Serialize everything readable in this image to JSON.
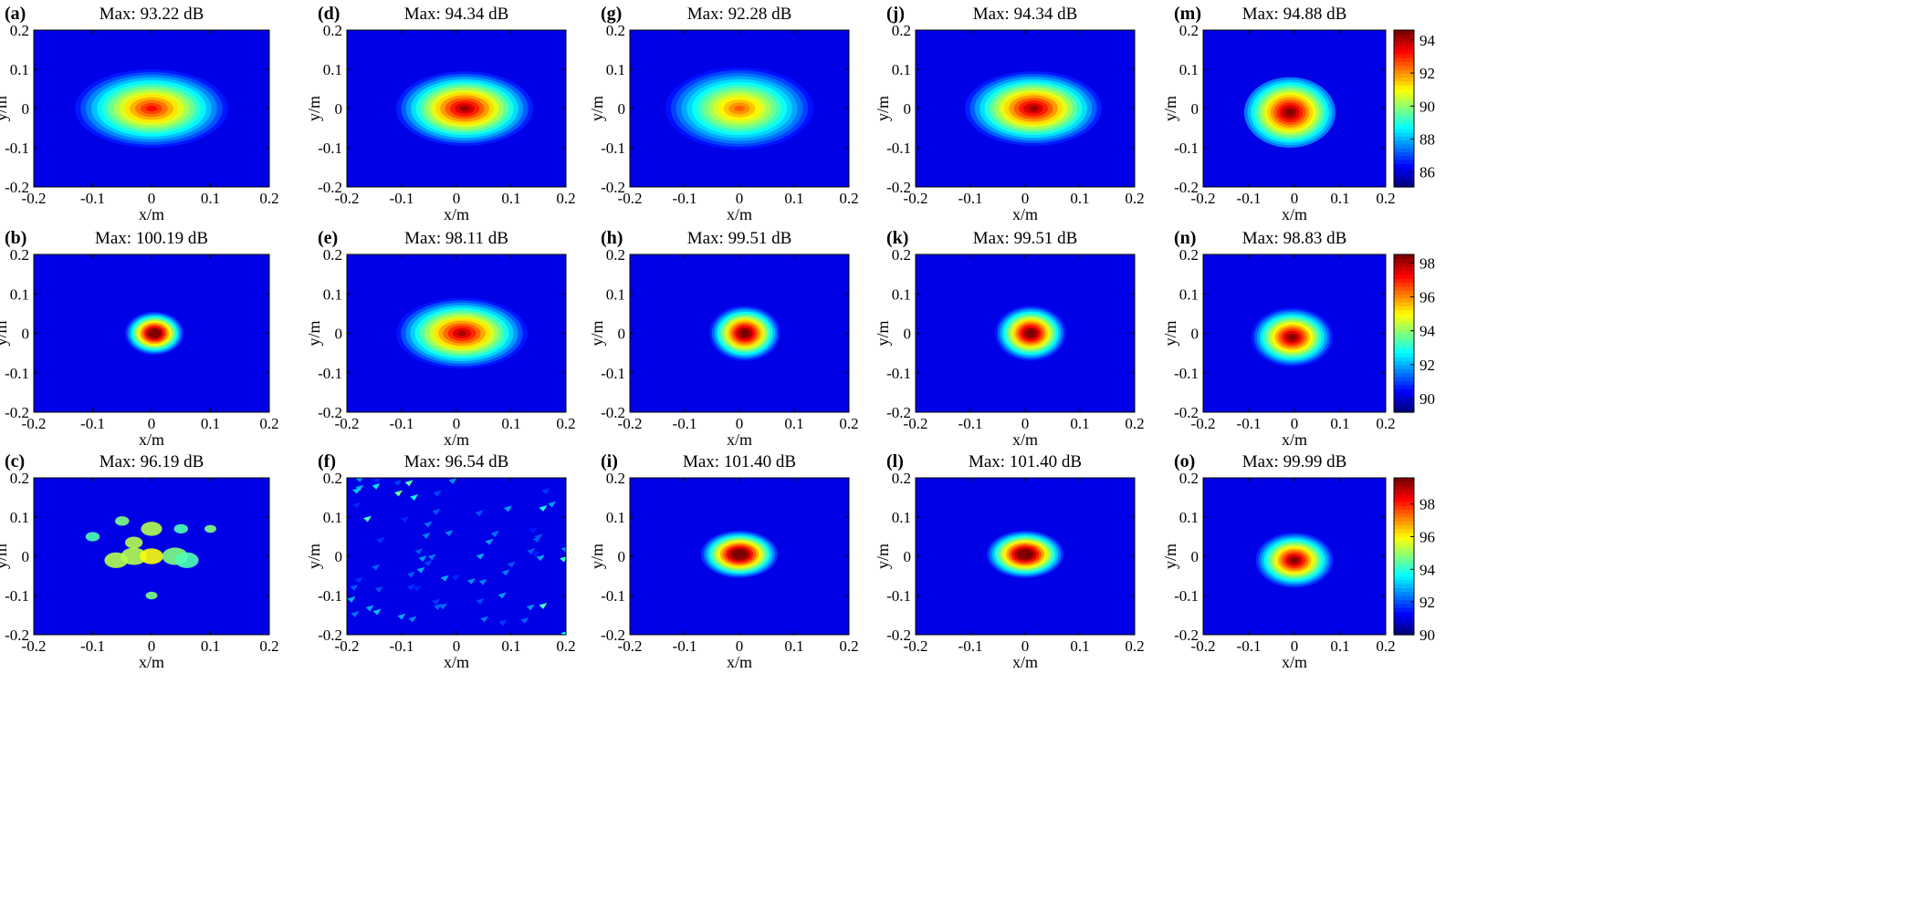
{
  "chart_data": {
    "type": "heatmap",
    "layout": {
      "rows": 3,
      "cols": 5
    },
    "x_ticks": [
      -0.2,
      -0.1,
      0,
      0.1,
      0.2
    ],
    "y_ticks": [
      -0.2,
      -0.1,
      0,
      0.1,
      0.2
    ],
    "xlabel": "x/m",
    "ylabel": "y/m",
    "xlim": [
      -0.2,
      0.2
    ],
    "ylim": [
      -0.2,
      0.2
    ],
    "colormap": "jet",
    "colorbars": [
      {
        "row": 0,
        "range": [
          85.1,
          94.6
        ],
        "ticks": [
          86,
          88,
          90,
          92,
          94
        ]
      },
      {
        "row": 1,
        "range": [
          89.2,
          98.5
        ],
        "ticks": [
          90,
          92,
          94,
          96,
          98
        ]
      },
      {
        "row": 2,
        "range": [
          90.0,
          99.6
        ],
        "ticks": [
          90,
          92,
          94,
          96,
          98
        ]
      }
    ],
    "panels": [
      {
        "label": "(a)",
        "title": "Max: 93.22 dB",
        "row": 0,
        "col": 0,
        "max_db": 93.22,
        "pattern": "blob",
        "cx": 0.0,
        "cy": 0.0,
        "rx": 0.13,
        "ry": 0.1,
        "peak": 93.22,
        "floor": 85.0
      },
      {
        "label": "(d)",
        "title": "Max: 94.34 dB",
        "row": 0,
        "col": 1,
        "max_db": 94.34,
        "pattern": "blob",
        "cx": 0.015,
        "cy": 0.0,
        "rx": 0.125,
        "ry": 0.095,
        "peak": 94.34,
        "floor": 85.0
      },
      {
        "label": "(g)",
        "title": "Max: 92.28 dB",
        "row": 0,
        "col": 2,
        "max_db": 92.28,
        "pattern": "blob",
        "cx": 0.0,
        "cy": 0.0,
        "rx": 0.135,
        "ry": 0.105,
        "peak": 92.28,
        "floor": 85.0
      },
      {
        "label": "(j)",
        "title": "Max: 94.34 dB",
        "row": 0,
        "col": 3,
        "max_db": 94.34,
        "pattern": "blob",
        "cx": 0.015,
        "cy": 0.0,
        "rx": 0.125,
        "ry": 0.095,
        "peak": 94.34,
        "floor": 85.0
      },
      {
        "label": "(m)",
        "title": "Max: 94.88 dB",
        "row": 0,
        "col": 4,
        "max_db": 94.88,
        "pattern": "blob",
        "cx": -0.01,
        "cy": -0.01,
        "rx": 0.1,
        "ry": 0.09,
        "peak": 94.88,
        "floor": 86.0
      },
      {
        "label": "(b)",
        "title": "Max: 100.19 dB",
        "row": 1,
        "col": 0,
        "max_db": 100.19,
        "pattern": "blob",
        "cx": 0.005,
        "cy": 0.0,
        "rx": 0.05,
        "ry": 0.055,
        "peak": 100.19,
        "floor": 89.0
      },
      {
        "label": "(e)",
        "title": "Max: 98.11 dB",
        "row": 1,
        "col": 1,
        "max_db": 98.11,
        "pattern": "blob",
        "cx": 0.01,
        "cy": 0.0,
        "rx": 0.12,
        "ry": 0.09,
        "peak": 98.11,
        "floor": 89.0
      },
      {
        "label": "(h)",
        "title": "Max: 99.51 dB",
        "row": 1,
        "col": 2,
        "max_db": 99.51,
        "pattern": "blob",
        "cx": 0.01,
        "cy": 0.0,
        "rx": 0.065,
        "ry": 0.07,
        "peak": 99.51,
        "floor": 89.0
      },
      {
        "label": "(k)",
        "title": "Max: 99.51 dB",
        "row": 1,
        "col": 3,
        "max_db": 99.51,
        "pattern": "blob",
        "cx": 0.01,
        "cy": 0.0,
        "rx": 0.065,
        "ry": 0.07,
        "peak": 99.51,
        "floor": 89.0
      },
      {
        "label": "(n)",
        "title": "Max: 98.83 dB",
        "row": 1,
        "col": 4,
        "max_db": 98.83,
        "pattern": "blob",
        "cx": -0.005,
        "cy": -0.01,
        "rx": 0.09,
        "ry": 0.075,
        "peak": 98.83,
        "floor": 89.0
      },
      {
        "label": "(c)",
        "title": "Max: 96.19 dB",
        "row": 2,
        "col": 0,
        "max_db": 96.19,
        "pattern": "speckle",
        "peak": 96.19,
        "floor": 90.0
      },
      {
        "label": "(f)",
        "title": "Max: 96.54 dB",
        "row": 2,
        "col": 1,
        "max_db": 96.54,
        "pattern": "scatter",
        "peak": 96.54,
        "floor": 90.0
      },
      {
        "label": "(i)",
        "title": "Max: 101.40 dB",
        "row": 2,
        "col": 2,
        "max_db": 101.4,
        "pattern": "blob",
        "cx": 0.0,
        "cy": 0.005,
        "rx": 0.07,
        "ry": 0.06,
        "peak": 101.4,
        "floor": 90.0
      },
      {
        "label": "(l)",
        "title": "Max: 101.40 dB",
        "row": 2,
        "col": 3,
        "max_db": 101.4,
        "pattern": "blob",
        "cx": 0.0,
        "cy": 0.005,
        "rx": 0.07,
        "ry": 0.06,
        "peak": 101.4,
        "floor": 90.0
      },
      {
        "label": "(o)",
        "title": "Max: 99.99 dB",
        "row": 2,
        "col": 4,
        "max_db": 99.99,
        "pattern": "blob",
        "cx": 0.0,
        "cy": -0.01,
        "rx": 0.085,
        "ry": 0.07,
        "peak": 99.99,
        "floor": 90.0
      }
    ]
  }
}
